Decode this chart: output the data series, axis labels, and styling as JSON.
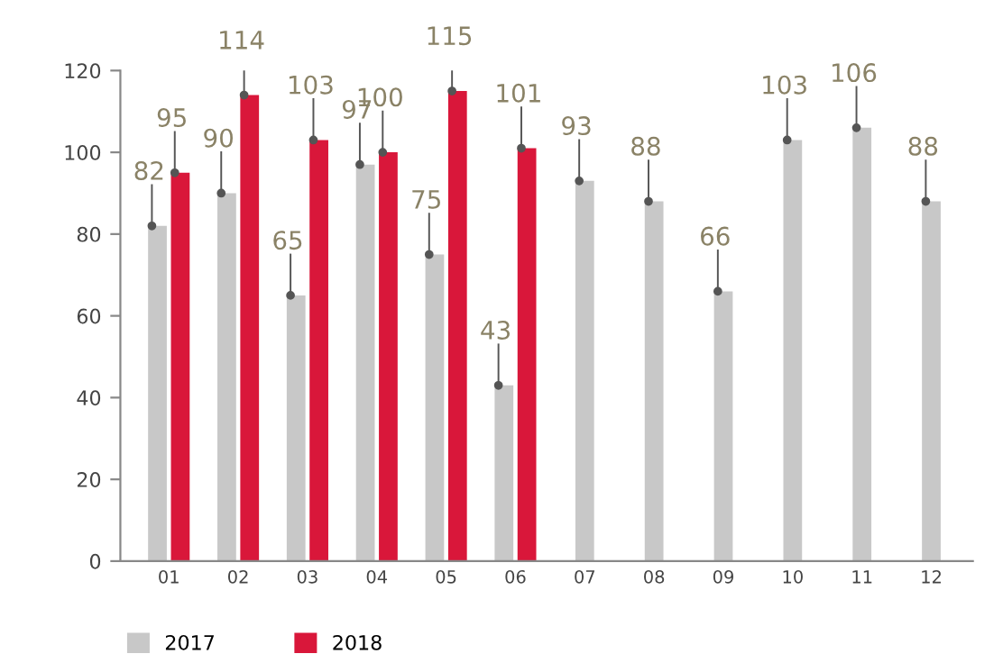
{
  "chart_data": {
    "type": "bar",
    "categories": [
      "01",
      "02",
      "03",
      "04",
      "05",
      "06",
      "07",
      "08",
      "09",
      "10",
      "11",
      "12"
    ],
    "series": [
      {
        "name": "2017",
        "color": "#c8c8c8",
        "values": [
          82,
          90,
          65,
          97,
          75,
          43,
          93,
          88,
          66,
          103,
          106,
          88
        ]
      },
      {
        "name": "2018",
        "color": "#d9173a",
        "values": [
          95,
          114,
          103,
          100,
          115,
          101,
          null,
          null,
          null,
          null,
          null,
          null
        ]
      }
    ],
    "ylim": [
      0,
      120
    ],
    "yticks": [
      0,
      20,
      40,
      60,
      80,
      100,
      120
    ],
    "grid": false,
    "legend": "bottom left",
    "data_labels": true
  }
}
